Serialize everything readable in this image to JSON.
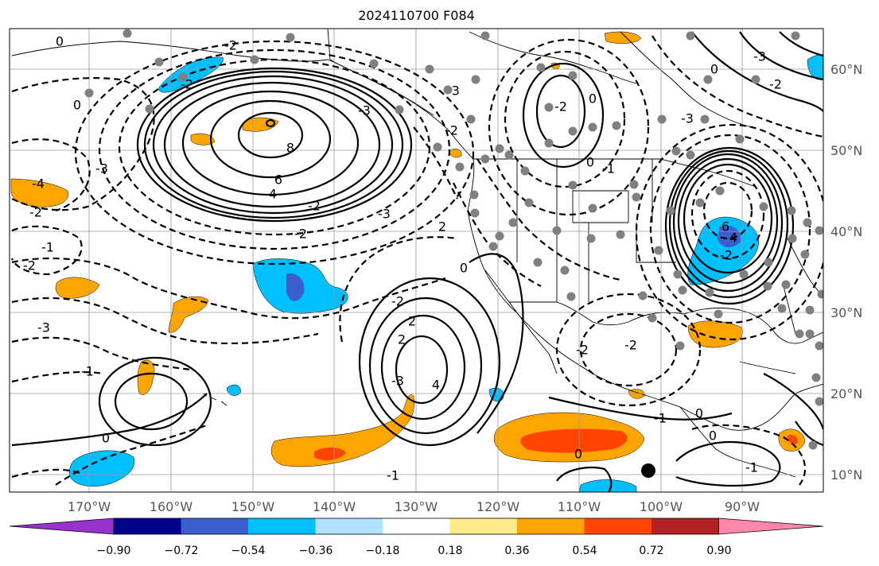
{
  "title": "2024110700 F084",
  "lon_labels": [
    "170°W",
    "160°W",
    "150°W",
    "140°W",
    "130°W",
    "120°W",
    "110°W",
    "100°W",
    "90°W"
  ],
  "lat_labels": [
    "60°N",
    "50°N",
    "40°N",
    "30°N",
    "20°N",
    "10°N"
  ],
  "colorbar": {
    "tick_labels": [
      "−0.90",
      "−0.72",
      "−0.54",
      "−0.36",
      "−0.18",
      "0.18",
      "0.36",
      "0.54",
      "0.72",
      "0.90"
    ],
    "colors": [
      "#9932cc",
      "#00008b",
      "#3a5fcd",
      "#00bfff",
      "#b0e2ff",
      "#ffffff",
      "#ffeb8a",
      "#ffa500",
      "#ff4500",
      "#b22222",
      "#ff88aa"
    ]
  },
  "shading_colors": {
    "positive_light": "#ffa500",
    "positive_strong": "#ff4500",
    "negative_light": "#00bfff",
    "negative_strong": "#3a5fcd",
    "negative_pale": "#b0e2ff"
  },
  "contour_labels": {
    "l1": "0",
    "l2": "-2",
    "l3": "-2",
    "l4": "0",
    "l5": "-3",
    "l6": "8",
    "l7": "6",
    "l8": "-4",
    "l9": "-2",
    "l10": "-2",
    "l11": "-4",
    "l12": "-2",
    "l13": "-1",
    "l14": "-2",
    "l15": "-3",
    "l16": "-1",
    "l17": "0",
    "l18": "-3",
    "l19": "2",
    "l20": "4",
    "l21": "-3",
    "l22": "-2",
    "l23": "2",
    "l24": "-2",
    "l25": "-3",
    "l26": "0",
    "l27": "-3",
    "l28": "0",
    "l29": "-1",
    "l30": "-2",
    "l31": "0",
    "l32": "6",
    "l33": "4",
    "l34": "-2",
    "l35": "0",
    "l36": "-2",
    "l37": "0",
    "l38": "-1",
    "l39": "-1",
    "l40": "0",
    "l41": "-2",
    "l42": "-3",
    "l43": "-3",
    "l44": "-2",
    "l45": "2",
    "l46": "-1",
    "l47": "0"
  }
}
